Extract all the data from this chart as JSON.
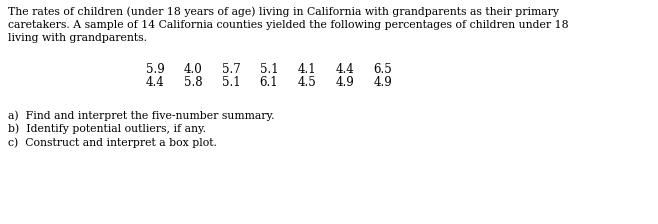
{
  "line1": "The rates of children (under 18 years of age) living in California with grandparents as their primary",
  "line2": "caretakers. A sample of 14 California counties yielded the following percentages of children under 18",
  "line3": "living with grandparents.",
  "data_values": [
    [
      "5.9",
      "4.0",
      "5.7",
      "5.1",
      "4.1",
      "4.4",
      "6.5"
    ],
    [
      "4.4",
      "5.8",
      "5.1",
      "6.1",
      "4.5",
      "4.9",
      "4.9"
    ]
  ],
  "questions": [
    "a)  Find and interpret the five-number summary.",
    "b)  Identify potential outliers, if any.",
    "c)  Construct and interpret a box plot."
  ],
  "bg_color": "#ffffff",
  "text_color": "#000000",
  "font_size": 7.8,
  "data_font_size": 8.5,
  "q_font_size": 7.8
}
